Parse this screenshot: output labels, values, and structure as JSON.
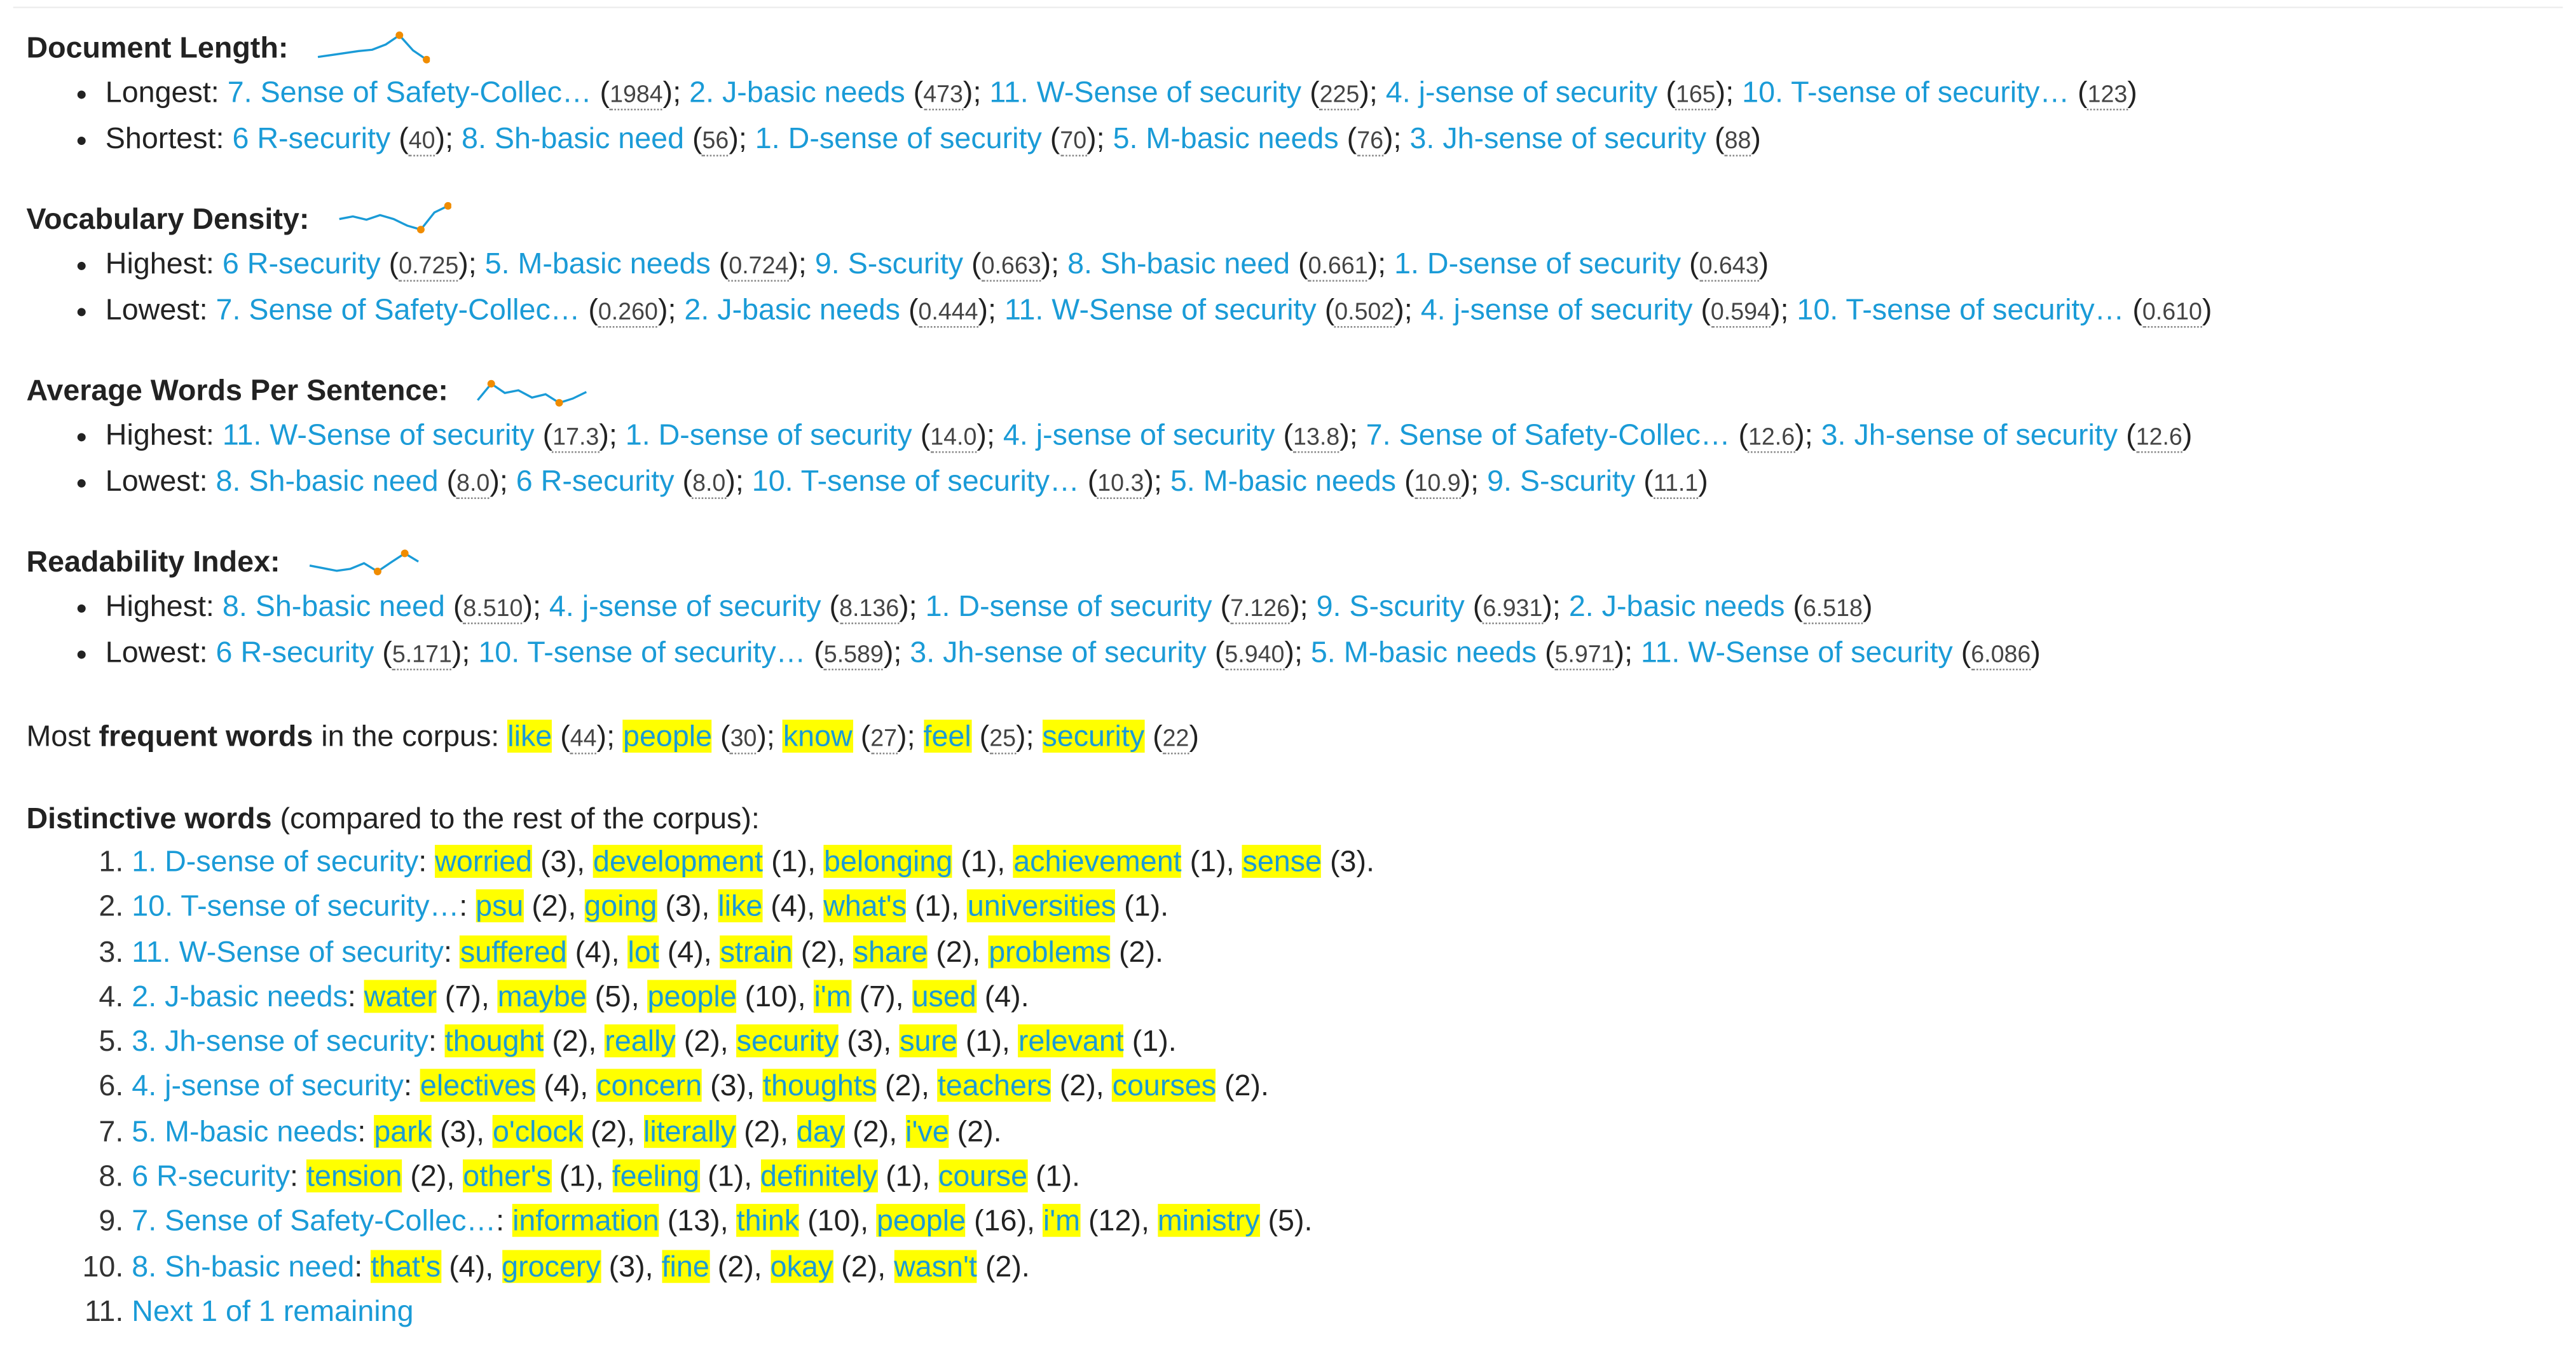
{
  "stats": [
    {
      "heading": "Document Length:",
      "spark_name": "document-length-sparkline",
      "spark": [
        0.78,
        0.72,
        0.66,
        0.6,
        0.56,
        0.4,
        0.12,
        0.58,
        0.86
      ],
      "rows": [
        {
          "label": "Longest:",
          "items": [
            {
              "name": "7. Sense of Safety-Collec…",
              "value": "1984"
            },
            {
              "name": "2. J-basic needs",
              "value": "473"
            },
            {
              "name": "11. W-Sense of security",
              "value": "225"
            },
            {
              "name": "4. j-sense of security",
              "value": "165"
            },
            {
              "name": "10. T-sense of security…",
              "value": "123"
            }
          ]
        },
        {
          "label": "Shortest:",
          "items": [
            {
              "name": "6 R-security",
              "value": "40"
            },
            {
              "name": "8. Sh-basic need",
              "value": "56"
            },
            {
              "name": "1. D-sense of security",
              "value": "70"
            },
            {
              "name": "5. M-basic needs",
              "value": "76"
            },
            {
              "name": "3. Jh-sense of security",
              "value": "88"
            }
          ]
        }
      ]
    },
    {
      "heading": "Vocabulary Density:",
      "spark_name": "vocabulary-density-sparkline",
      "spark": [
        0.5,
        0.42,
        0.52,
        0.38,
        0.5,
        0.7,
        0.82,
        0.3,
        0.1
      ],
      "rows": [
        {
          "label": "Highest:",
          "items": [
            {
              "name": "6 R-security",
              "value": "0.725"
            },
            {
              "name": "5. M-basic needs",
              "value": "0.724"
            },
            {
              "name": "9. S-scurity",
              "value": "0.663"
            },
            {
              "name": "8. Sh-basic need",
              "value": "0.661"
            },
            {
              "name": "1. D-sense of security",
              "value": "0.643"
            }
          ]
        },
        {
          "label": "Lowest:",
          "items": [
            {
              "name": "7. Sense of Safety-Collec…",
              "value": "0.260"
            },
            {
              "name": "2. J-basic needs",
              "value": "0.444"
            },
            {
              "name": "11. W-Sense of security",
              "value": "0.502"
            },
            {
              "name": "4. j-sense of security",
              "value": "0.594"
            },
            {
              "name": "10. T-sense of security…",
              "value": "0.610"
            }
          ]
        }
      ]
    },
    {
      "heading": "Average Words Per Sentence:",
      "spark_name": "average-words-per-sentence-sparkline",
      "spark": [
        0.8,
        0.3,
        0.58,
        0.5,
        0.72,
        0.62,
        0.88,
        0.75,
        0.55
      ],
      "rows": [
        {
          "label": "Highest:",
          "items": [
            {
              "name": "11. W-Sense of security",
              "value": "17.3"
            },
            {
              "name": "1. D-sense of security",
              "value": "14.0"
            },
            {
              "name": "4. j-sense of security",
              "value": "13.8"
            },
            {
              "name": "7. Sense of Safety-Collec…",
              "value": "12.6"
            },
            {
              "name": "3. Jh-sense of security",
              "value": "12.6"
            }
          ]
        },
        {
          "label": "Lowest:",
          "items": [
            {
              "name": "8. Sh-basic need",
              "value": "8.0"
            },
            {
              "name": "6 R-security",
              "value": "8.0"
            },
            {
              "name": "10. T-sense of security…",
              "value": "10.3"
            },
            {
              "name": "5. M-basic needs",
              "value": "10.9"
            },
            {
              "name": "9. S-scurity",
              "value": "11.1"
            }
          ]
        }
      ]
    },
    {
      "heading": "Readability Index:",
      "spark_name": "readability-index-sparkline",
      "spark": [
        0.62,
        0.7,
        0.78,
        0.72,
        0.55,
        0.8,
        0.52,
        0.25,
        0.5
      ],
      "rows": [
        {
          "label": "Highest:",
          "items": [
            {
              "name": "8. Sh-basic need",
              "value": "8.510"
            },
            {
              "name": "4. j-sense of security",
              "value": "8.136"
            },
            {
              "name": "1. D-sense of security",
              "value": "7.126"
            },
            {
              "name": "9. S-scurity",
              "value": "6.931"
            },
            {
              "name": "2. J-basic needs",
              "value": "6.518"
            }
          ]
        },
        {
          "label": "Lowest:",
          "items": [
            {
              "name": "6 R-security",
              "value": "5.171"
            },
            {
              "name": "10. T-sense of security…",
              "value": "5.589"
            },
            {
              "name": "3. Jh-sense of security",
              "value": "5.940"
            },
            {
              "name": "5. M-basic needs",
              "value": "5.971"
            },
            {
              "name": "11. W-Sense of security",
              "value": "6.086"
            }
          ]
        }
      ]
    }
  ],
  "frequent": {
    "prefix": "Most ",
    "bold": "frequent words",
    "suffix": " in the corpus: ",
    "words": [
      {
        "word": "like",
        "count": "44"
      },
      {
        "word": "people",
        "count": "30"
      },
      {
        "word": "know",
        "count": "27"
      },
      {
        "word": "feel",
        "count": "25"
      },
      {
        "word": "security",
        "count": "22"
      }
    ]
  },
  "distinctive": {
    "bold": "Distinctive words",
    "suffix": " (compared to the rest of the corpus):",
    "items": [
      {
        "doc": "1. D-sense of security",
        "words": [
          [
            "worried",
            "3"
          ],
          [
            "development",
            "1"
          ],
          [
            "belonging",
            "1"
          ],
          [
            "achievement",
            "1"
          ],
          [
            "sense",
            "3"
          ]
        ]
      },
      {
        "doc": "10. T-sense of security…",
        "words": [
          [
            "psu",
            "2"
          ],
          [
            "going",
            "3"
          ],
          [
            "like",
            "4"
          ],
          [
            "what's",
            "1"
          ],
          [
            "universities",
            "1"
          ]
        ]
      },
      {
        "doc": "11. W-Sense of security",
        "words": [
          [
            "suffered",
            "4"
          ],
          [
            "lot",
            "4"
          ],
          [
            "strain",
            "2"
          ],
          [
            "share",
            "2"
          ],
          [
            "problems",
            "2"
          ]
        ]
      },
      {
        "doc": "2. J-basic needs",
        "words": [
          [
            "water",
            "7"
          ],
          [
            "maybe",
            "5"
          ],
          [
            "people",
            "10"
          ],
          [
            "i'm",
            "7"
          ],
          [
            "used",
            "4"
          ]
        ]
      },
      {
        "doc": "3. Jh-sense of security",
        "words": [
          [
            "thought",
            "2"
          ],
          [
            "really",
            "2"
          ],
          [
            "security",
            "3"
          ],
          [
            "sure",
            "1"
          ],
          [
            "relevant",
            "1"
          ]
        ]
      },
      {
        "doc": "4. j-sense of security",
        "words": [
          [
            "electives",
            "4"
          ],
          [
            "concern",
            "3"
          ],
          [
            "thoughts",
            "2"
          ],
          [
            "teachers",
            "2"
          ],
          [
            "courses",
            "2"
          ]
        ]
      },
      {
        "doc": "5. M-basic needs",
        "words": [
          [
            "park",
            "3"
          ],
          [
            "o'clock",
            "2"
          ],
          [
            "literally",
            "2"
          ],
          [
            "day",
            "2"
          ],
          [
            "i've",
            "2"
          ]
        ]
      },
      {
        "doc": "6 R-security",
        "words": [
          [
            "tension",
            "2"
          ],
          [
            "other's",
            "1"
          ],
          [
            "feeling",
            "1"
          ],
          [
            "definitely",
            "1"
          ],
          [
            "course",
            "1"
          ]
        ]
      },
      {
        "doc": "7. Sense of Safety-Collec…",
        "words": [
          [
            "information",
            "13"
          ],
          [
            "think",
            "10"
          ],
          [
            "people",
            "16"
          ],
          [
            "i'm",
            "12"
          ],
          [
            "ministry",
            "5"
          ]
        ]
      },
      {
        "doc": "8. Sh-basic need",
        "words": [
          [
            "that's",
            "4"
          ],
          [
            "grocery",
            "3"
          ],
          [
            "fine",
            "2"
          ],
          [
            "okay",
            "2"
          ],
          [
            "wasn't",
            "2"
          ]
        ]
      }
    ],
    "next_label": "Next 1 of 1 remaining"
  },
  "colors": {
    "link": "#1a9bd7",
    "highlight": "#ffff00",
    "sparkline": "#1a9bd7",
    "sparkline_dot": "#f08c00"
  }
}
